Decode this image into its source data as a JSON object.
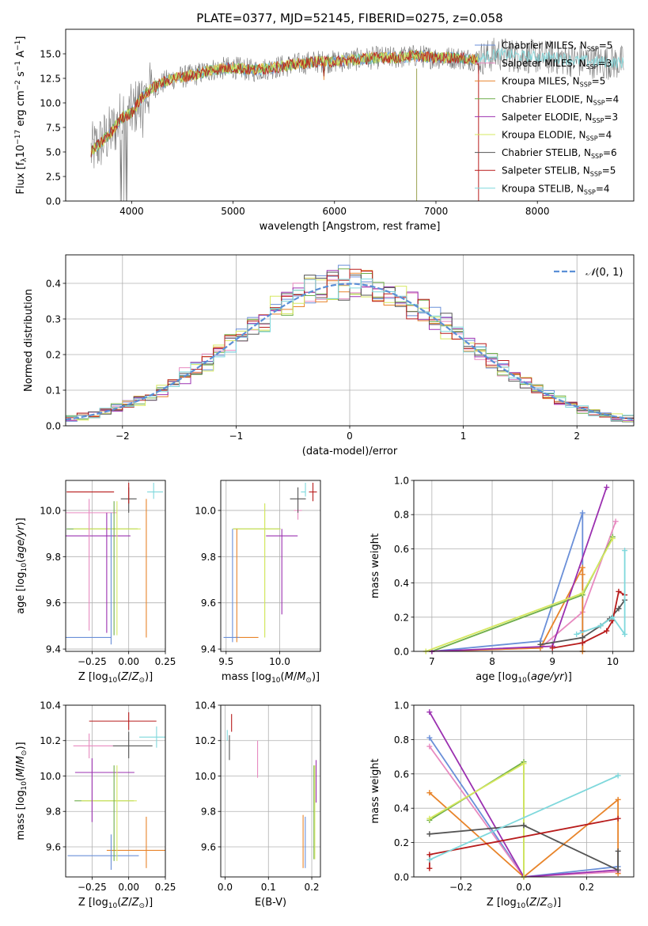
{
  "colors": {
    "chabrier_miles": "#6a8fd8",
    "salpeter_miles": "#e88ac0",
    "kroupa_miles": "#e8842a",
    "chabrier_elodie": "#6fae4a",
    "salpeter_elodie": "#9b30b0",
    "kroupa_elodie": "#d6e860",
    "chabrier_stelib": "#555555",
    "salpeter_stelib": "#b81c1c",
    "kroupa_stelib": "#7fd8dc",
    "gaussian": "#5b8fd6",
    "grid": "#b0b0b0"
  },
  "chart_data": [
    {
      "type": "line",
      "title": "PLATE=0377, MJD=52145, FIBERID=0275, z=0.058",
      "xlabel": "wavelength [Angstrom, rest frame]",
      "ylabel": "Flux [f$_\\lambda$10$^{-17}$ erg cm$^{-2}$ s$^{-1}$ A$^{-1}$]",
      "xlim": [
        3350,
        8950
      ],
      "ylim": [
        0,
        17.5
      ],
      "xticks": [
        "4000",
        "5000",
        "6000",
        "7000",
        "8000"
      ],
      "yticks": [
        "0.0",
        "2.5",
        "5.0",
        "7.5",
        "10.0",
        "12.5",
        "15.0"
      ],
      "legend_position": "right",
      "series": [
        {
          "name": "Chabrier MILES, N$_{SSP}$=5"
        },
        {
          "name": "Salpeter MILES, N$_{SSP}$=3"
        },
        {
          "name": "Kroupa MILES, N$_{SSP}$=5"
        },
        {
          "name": "Chabrier ELODIE, N$_{SSP}$=4"
        },
        {
          "name": "Salpeter ELODIE, N$_{SSP}$=3"
        },
        {
          "name": "Kroupa ELODIE, N$_{SSP}$=4"
        },
        {
          "name": "Chabrier STELIB, N$_{SSP}$=6"
        },
        {
          "name": "Salpeter STELIB, N$_{SSP}$=5"
        },
        {
          "name": "Kroupa STELIB, N$_{SSP}$=4"
        }
      ],
      "continuum": {
        "x": [
          3600,
          3700,
          3800,
          3900,
          4000,
          4100,
          4200,
          4400,
          4600,
          4800,
          5000,
          5200,
          5400,
          5600,
          5800,
          6000,
          6200,
          6400,
          6600,
          6800,
          7000,
          7200,
          7400,
          7600,
          7800,
          8000,
          8200,
          8400,
          8600,
          8800,
          8850
        ],
        "y": [
          5.0,
          6.0,
          7.0,
          8.5,
          9.0,
          10.5,
          11.5,
          12.5,
          12.8,
          13.4,
          13.6,
          13.3,
          13.6,
          13.9,
          14.2,
          14.2,
          14.4,
          14.6,
          14.6,
          14.8,
          14.6,
          14.6,
          14.4,
          15.0,
          14.8,
          14.7,
          14.6,
          14.3,
          14.2,
          14.1,
          14.1
        ]
      }
    },
    {
      "type": "line",
      "xlabel": "(data-model)/error",
      "ylabel": "Normed distribution",
      "xlim": [
        -2.5,
        2.5
      ],
      "ylim": [
        0,
        0.48
      ],
      "xticks": [
        "−2",
        "−1",
        "0",
        "1",
        "2"
      ],
      "yticks": [
        "0.0",
        "0.1",
        "0.2",
        "0.3",
        "0.4"
      ],
      "series": [
        {
          "name": "$\\mathcal{N}(0,1)$",
          "style": "dashed"
        }
      ]
    },
    {
      "type": "scatter",
      "xlabel": "Z [log$_{10}$($Z/Z_\\odot$)]",
      "ylabel": "age  [log$_{10}$($age/yr$)]",
      "xlim": [
        -0.43,
        0.25
      ],
      "ylim": [
        9.39,
        10.13
      ],
      "xticks": [
        "−0.25",
        "0.00",
        "0.25"
      ],
      "yticks": [
        "9.4",
        "9.6",
        "9.8",
        "10.0"
      ],
      "points": [
        {
          "x": 0.12,
          "y": 9.45,
          "color": "kroupa_miles"
        },
        {
          "x": -0.12,
          "y": 9.45,
          "color": "chabrier_miles"
        },
        {
          "x": -0.27,
          "y": 9.99,
          "color": "salpeter_miles"
        },
        {
          "x": -0.1,
          "y": 9.92,
          "color": "chabrier_elodie"
        },
        {
          "x": -0.08,
          "y": 9.92,
          "color": "kroupa_elodie"
        },
        {
          "x": -0.15,
          "y": 9.89,
          "color": "salpeter_elodie"
        },
        {
          "x": 0.0,
          "y": 10.05,
          "color": "chabrier_stelib"
        },
        {
          "x": -0.1,
          "y": 10.08,
          "color": "salpeter_stelib"
        },
        {
          "x": 0.18,
          "y": 10.08,
          "color": "kroupa_stelib"
        }
      ]
    },
    {
      "type": "scatter",
      "xlabel": "mass [log$_{10}$($M/M_\\odot$)]",
      "xlim": [
        9.45,
        10.38
      ],
      "ylim": [
        9.39,
        10.13
      ],
      "xticks": [
        "9.5",
        "10.0"
      ],
      "yticks": [
        "9.4",
        "9.6",
        "9.8",
        "10.0"
      ],
      "points": [
        {
          "x": 9.58,
          "y": 9.45,
          "color": "kroupa_miles"
        },
        {
          "x": 9.55,
          "y": 9.45,
          "color": "chabrier_miles"
        },
        {
          "x": 10.17,
          "y": 10.0,
          "color": "salpeter_miles"
        },
        {
          "x": 9.86,
          "y": 9.92,
          "color": "chabrier_elodie"
        },
        {
          "x": 9.86,
          "y": 9.92,
          "color": "kroupa_elodie"
        },
        {
          "x": 10.02,
          "y": 9.89,
          "color": "salpeter_elodie"
        },
        {
          "x": 10.17,
          "y": 10.05,
          "color": "chabrier_stelib"
        },
        {
          "x": 10.31,
          "y": 10.08,
          "color": "salpeter_stelib"
        },
        {
          "x": 10.22,
          "y": 10.08,
          "color": "kroupa_stelib"
        }
      ]
    },
    {
      "type": "line",
      "xlabel": "age  [log$_{10}$($age/yr$)]",
      "ylabel": "mass weight",
      "xlim": [
        6.7,
        10.35
      ],
      "ylim": [
        0,
        1.0
      ],
      "xticks": [
        "7",
        "8",
        "9",
        "10"
      ],
      "yticks": [
        "0.0",
        "0.2",
        "0.4",
        "0.6",
        "0.8",
        "1.0"
      ],
      "series": [
        {
          "color": "chabrier_miles",
          "x": [
            7.0,
            8.8,
            9.5,
            9.5,
            9.5
          ],
          "y": [
            0.0,
            0.06,
            0.81,
            0.12,
            0.0
          ]
        },
        {
          "color": "salpeter_miles",
          "x": [
            7.0,
            8.8,
            9.5,
            10.05
          ],
          "y": [
            0.0,
            0.02,
            0.23,
            0.76
          ]
        },
        {
          "color": "kroupa_miles",
          "x": [
            7.0,
            8.8,
            9.5,
            9.5,
            9.5
          ],
          "y": [
            0.0,
            0.02,
            0.49,
            0.45,
            0.0
          ]
        },
        {
          "color": "chabrier_elodie",
          "x": [
            7.0,
            9.5,
            10.0
          ],
          "y": [
            0.0,
            0.33,
            0.67
          ]
        },
        {
          "color": "salpeter_elodie",
          "x": [
            7.0,
            9.0,
            9.9
          ],
          "y": [
            0.0,
            0.03,
            0.96
          ]
        },
        {
          "color": "kroupa_elodie",
          "x": [
            6.9,
            9.5,
            10.0
          ],
          "y": [
            0.0,
            0.34,
            0.66
          ]
        },
        {
          "color": "chabrier_stelib",
          "x": [
            8.8,
            9.5,
            9.8,
            9.95,
            10.1,
            10.2
          ],
          "y": [
            0.04,
            0.08,
            0.15,
            0.19,
            0.25,
            0.3
          ]
        },
        {
          "color": "salpeter_stelib",
          "x": [
            9.0,
            9.5,
            9.9,
            10.0,
            10.1,
            10.2
          ],
          "y": [
            0.02,
            0.05,
            0.12,
            0.18,
            0.35,
            0.33
          ]
        },
        {
          "color": "kroupa_stelib",
          "x": [
            9.4,
            9.8,
            10.0,
            10.2,
            10.2
          ],
          "y": [
            0.1,
            0.15,
            0.2,
            0.1,
            0.59
          ]
        }
      ]
    },
    {
      "type": "scatter",
      "xlabel": "Z [log$_{10}$($Z/Z_\\odot$)]",
      "ylabel": "mass [log$_{10}$($M/M_\\odot$)]",
      "xlim": [
        -0.43,
        0.25
      ],
      "ylim": [
        9.43,
        10.4
      ],
      "xticks": [
        "−0.25",
        "0.00",
        "0.25"
      ],
      "yticks": [
        "9.6",
        "9.8",
        "10.0",
        "10.2",
        "10.4"
      ],
      "points": [
        {
          "x": 0.12,
          "y": 9.58,
          "color": "kroupa_miles"
        },
        {
          "x": -0.12,
          "y": 9.55,
          "color": "chabrier_miles"
        },
        {
          "x": -0.27,
          "y": 10.17,
          "color": "salpeter_miles"
        },
        {
          "x": -0.1,
          "y": 9.86,
          "color": "chabrier_elodie"
        },
        {
          "x": -0.08,
          "y": 9.86,
          "color": "kroupa_elodie"
        },
        {
          "x": -0.15,
          "y": 10.02,
          "color": "salpeter_elodie"
        },
        {
          "x": 0.0,
          "y": 10.17,
          "color": "chabrier_stelib"
        },
        {
          "x": 0.0,
          "y": 10.31,
          "color": "salpeter_stelib"
        },
        {
          "x": 0.18,
          "y": 10.22,
          "color": "kroupa_stelib"
        }
      ]
    },
    {
      "type": "scatter",
      "xlabel": "E(B-V)",
      "xlim": [
        -0.01,
        0.22
      ],
      "ylim": [
        9.43,
        10.4
      ],
      "xticks": [
        "0.0",
        "0.1",
        "0.2"
      ],
      "yticks": [
        "9.6",
        "9.8",
        "10.0",
        "10.2",
        "10.4"
      ],
      "points": [
        {
          "x": 0.18,
          "y": 9.58,
          "color": "kroupa_miles"
        },
        {
          "x": 0.185,
          "y": 9.58,
          "color": "chabrier_miles"
        },
        {
          "x": 0.075,
          "y": 10.1,
          "color": "salpeter_miles"
        },
        {
          "x": 0.205,
          "y": 9.86,
          "color": "chabrier_elodie"
        },
        {
          "x": 0.205,
          "y": 9.86,
          "color": "kroupa_elodie"
        },
        {
          "x": 0.21,
          "y": 10.02,
          "color": "salpeter_elodie"
        },
        {
          "x": 0.01,
          "y": 10.17,
          "color": "chabrier_stelib"
        },
        {
          "x": 0.015,
          "y": 10.3,
          "color": "salpeter_stelib"
        },
        {
          "x": 0.005,
          "y": 10.22,
          "color": "kroupa_stelib"
        }
      ]
    },
    {
      "type": "line",
      "xlabel": "Z [log$_{10}$($Z/Z_\\odot$)]",
      "ylabel": "mass weight",
      "xlim": [
        -0.35,
        0.35
      ],
      "ylim": [
        0,
        1.0
      ],
      "xticks": [
        "−0.2",
        "0.0",
        "0.2"
      ],
      "yticks": [
        "0.0",
        "0.2",
        "0.4",
        "0.6",
        "0.8",
        "1.0"
      ],
      "series": [
        {
          "color": "chabrier_miles",
          "x": [
            -0.3,
            0.0,
            0.3
          ],
          "y": [
            0.81,
            0.0,
            0.06
          ]
        },
        {
          "color": "salpeter_miles",
          "x": [
            -0.3,
            0.0,
            0.3
          ],
          "y": [
            0.76,
            0.0,
            0.03
          ]
        },
        {
          "color": "kroupa_miles",
          "x": [
            -0.3,
            0.0,
            0.3,
            0.3
          ],
          "y": [
            0.49,
            0.0,
            0.45,
            0.02
          ]
        },
        {
          "color": "chabrier_elodie",
          "x": [
            -0.3,
            0.0,
            0.0
          ],
          "y": [
            0.33,
            0.67,
            0.0
          ]
        },
        {
          "color": "salpeter_elodie",
          "x": [
            -0.3,
            0.0,
            0.3
          ],
          "y": [
            0.96,
            0.0,
            0.04
          ]
        },
        {
          "color": "kroupa_elodie",
          "x": [
            -0.3,
            0.0,
            0.0
          ],
          "y": [
            0.34,
            0.66,
            0.0
          ]
        },
        {
          "color": "chabrier_stelib",
          "x": [
            -0.3,
            0.0,
            0.3,
            0.3
          ],
          "y": [
            0.25,
            0.3,
            0.04,
            0.15
          ]
        },
        {
          "color": "salpeter_stelib",
          "x": [
            -0.3,
            -0.3,
            0.3
          ],
          "y": [
            0.05,
            0.13,
            0.34
          ]
        },
        {
          "color": "kroupa_stelib",
          "x": [
            -0.3,
            0.3
          ],
          "y": [
            0.1,
            0.59
          ]
        }
      ]
    }
  ]
}
